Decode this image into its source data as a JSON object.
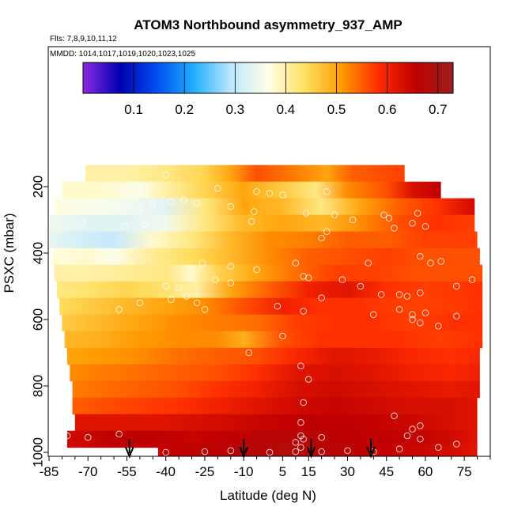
{
  "chart_data": {
    "type": "heatmap",
    "title": "ATOM3 Northbound asymmetry_937_AMP",
    "annotations": [
      "Flts: 7,8,9,10,11,12",
      "MMDD: 1014,1017,1019,1020,1023,1025"
    ],
    "xlabel": "Latitude (deg N)",
    "ylabel": "PSXC (mbar)",
    "xlim": [
      -85,
      85
    ],
    "ylim": [
      1000,
      0
    ],
    "x_ticks": [
      -85,
      -70,
      -55,
      -40,
      -25,
      -10,
      5,
      15,
      30,
      45,
      60,
      75
    ],
    "y_ticks": [
      200,
      400,
      600,
      800,
      1000
    ],
    "colorbar": {
      "ticks": [
        0.1,
        0.2,
        0.3,
        0.4,
        0.5,
        0.6,
        0.7
      ],
      "range": [
        0.0,
        0.73
      ],
      "colors": [
        "#8a2be2",
        "#0000b0",
        "#0050f0",
        "#20b0ff",
        "#bfe6ff",
        "#ffffe8",
        "#ffe060",
        "#ff9a00",
        "#ff2a00",
        "#c00000",
        "#9a2020"
      ]
    },
    "rows": [
      {
        "p": 160,
        "lat": [
          -71,
          52
        ],
        "vals": [
          [
            -71,
            0.4
          ],
          [
            -55,
            0.4
          ],
          [
            -40,
            0.42
          ],
          [
            -25,
            0.45
          ],
          [
            -15,
            0.5
          ],
          [
            -5,
            0.56
          ],
          [
            10,
            0.53
          ],
          [
            22,
            0.5
          ],
          [
            32,
            0.55
          ],
          [
            42,
            0.56
          ],
          [
            52,
            0.57
          ]
        ]
      },
      {
        "p": 210,
        "lat": [
          -80,
          66
        ],
        "vals": [
          [
            -80,
            0.38
          ],
          [
            -65,
            0.38
          ],
          [
            -50,
            0.36
          ],
          [
            -40,
            0.4
          ],
          [
            -25,
            0.45
          ],
          [
            -10,
            0.5
          ],
          [
            5,
            0.46
          ],
          [
            18,
            0.42
          ],
          [
            30,
            0.52
          ],
          [
            45,
            0.56
          ],
          [
            55,
            0.63
          ],
          [
            66,
            0.66
          ]
        ]
      },
      {
        "p": 260,
        "lat": [
          -83,
          79
        ],
        "vals": [
          [
            -83,
            0.37
          ],
          [
            -70,
            0.36
          ],
          [
            -55,
            0.35
          ],
          [
            -40,
            0.33
          ],
          [
            -25,
            0.42
          ],
          [
            -10,
            0.5
          ],
          [
            5,
            0.48
          ],
          [
            20,
            0.42
          ],
          [
            35,
            0.5
          ],
          [
            50,
            0.55
          ],
          [
            65,
            0.58
          ],
          [
            79,
            0.64
          ]
        ]
      },
      {
        "p": 310,
        "lat": [
          -85,
          79
        ],
        "vals": [
          [
            -85,
            0.35
          ],
          [
            -70,
            0.33
          ],
          [
            -55,
            0.33
          ],
          [
            -40,
            0.35
          ],
          [
            -25,
            0.42
          ],
          [
            -10,
            0.48
          ],
          [
            5,
            0.5
          ],
          [
            20,
            0.48
          ],
          [
            35,
            0.52
          ],
          [
            50,
            0.56
          ],
          [
            65,
            0.58
          ],
          [
            79,
            0.57
          ]
        ]
      },
      {
        "p": 360,
        "lat": [
          -85,
          80
        ],
        "vals": [
          [
            -85,
            0.34
          ],
          [
            -70,
            0.31
          ],
          [
            -60,
            0.3
          ],
          [
            -45,
            0.38
          ],
          [
            -30,
            0.42
          ],
          [
            -15,
            0.48
          ],
          [
            0,
            0.52
          ],
          [
            15,
            0.53
          ],
          [
            30,
            0.55
          ],
          [
            45,
            0.55
          ],
          [
            60,
            0.57
          ],
          [
            80,
            0.57
          ]
        ]
      },
      {
        "p": 410,
        "lat": [
          -84,
          81
        ],
        "vals": [
          [
            -84,
            0.37
          ],
          [
            -70,
            0.38
          ],
          [
            -60,
            0.36
          ],
          [
            -45,
            0.41
          ],
          [
            -30,
            0.44
          ],
          [
            -15,
            0.48
          ],
          [
            0,
            0.52
          ],
          [
            15,
            0.55
          ],
          [
            30,
            0.56
          ],
          [
            45,
            0.57
          ],
          [
            60,
            0.56
          ],
          [
            81,
            0.56
          ]
        ]
      },
      {
        "p": 460,
        "lat": [
          -83,
          82
        ],
        "vals": [
          [
            -83,
            0.4
          ],
          [
            -70,
            0.4
          ],
          [
            -55,
            0.41
          ],
          [
            -40,
            0.42
          ],
          [
            -30,
            0.38
          ],
          [
            -20,
            0.45
          ],
          [
            -5,
            0.5
          ],
          [
            10,
            0.54
          ],
          [
            25,
            0.57
          ],
          [
            40,
            0.57
          ],
          [
            55,
            0.56
          ],
          [
            70,
            0.56
          ],
          [
            82,
            0.56
          ]
        ]
      },
      {
        "p": 510,
        "lat": [
          -82,
          82
        ],
        "vals": [
          [
            -82,
            0.42
          ],
          [
            -70,
            0.43
          ],
          [
            -55,
            0.45
          ],
          [
            -40,
            0.43
          ],
          [
            -28,
            0.4
          ],
          [
            -15,
            0.5
          ],
          [
            0,
            0.55
          ],
          [
            15,
            0.6
          ],
          [
            30,
            0.62
          ],
          [
            45,
            0.58
          ],
          [
            60,
            0.57
          ],
          [
            82,
            0.58
          ]
        ]
      },
      {
        "p": 560,
        "lat": [
          -81,
          82
        ],
        "vals": [
          [
            -81,
            0.44
          ],
          [
            -70,
            0.46
          ],
          [
            -55,
            0.48
          ],
          [
            -40,
            0.5
          ],
          [
            -25,
            0.52
          ],
          [
            -10,
            0.56
          ],
          [
            5,
            0.6
          ],
          [
            20,
            0.58
          ],
          [
            35,
            0.58
          ],
          [
            50,
            0.57
          ],
          [
            65,
            0.57
          ],
          [
            82,
            0.58
          ]
        ]
      },
      {
        "p": 610,
        "lat": [
          -80,
          82
        ],
        "vals": [
          [
            -80,
            0.46
          ],
          [
            -65,
            0.48
          ],
          [
            -50,
            0.5
          ],
          [
            -35,
            0.52
          ],
          [
            -20,
            0.53
          ],
          [
            -5,
            0.54
          ],
          [
            10,
            0.57
          ],
          [
            25,
            0.58
          ],
          [
            40,
            0.58
          ],
          [
            55,
            0.57
          ],
          [
            70,
            0.58
          ],
          [
            82,
            0.58
          ]
        ]
      },
      {
        "p": 660,
        "lat": [
          -79,
          82
        ],
        "vals": [
          [
            -79,
            0.48
          ],
          [
            -65,
            0.49
          ],
          [
            -50,
            0.51
          ],
          [
            -35,
            0.52
          ],
          [
            -20,
            0.52
          ],
          [
            -10,
            0.49
          ],
          [
            5,
            0.56
          ],
          [
            20,
            0.58
          ],
          [
            35,
            0.58
          ],
          [
            50,
            0.58
          ],
          [
            65,
            0.57
          ],
          [
            82,
            0.58
          ]
        ]
      },
      {
        "p": 710,
        "lat": [
          -78,
          81
        ],
        "vals": [
          [
            -78,
            0.5
          ],
          [
            -65,
            0.51
          ],
          [
            -50,
            0.52
          ],
          [
            -35,
            0.54
          ],
          [
            -20,
            0.55
          ],
          [
            -5,
            0.56
          ],
          [
            10,
            0.59
          ],
          [
            25,
            0.62
          ],
          [
            40,
            0.61
          ],
          [
            55,
            0.59
          ],
          [
            70,
            0.58
          ],
          [
            81,
            0.59
          ]
        ]
      },
      {
        "p": 760,
        "lat": [
          -77,
          81
        ],
        "vals": [
          [
            -77,
            0.52
          ],
          [
            -65,
            0.53
          ],
          [
            -50,
            0.54
          ],
          [
            -35,
            0.55
          ],
          [
            -20,
            0.56
          ],
          [
            -5,
            0.58
          ],
          [
            10,
            0.62
          ],
          [
            25,
            0.63
          ],
          [
            40,
            0.62
          ],
          [
            55,
            0.6
          ],
          [
            70,
            0.59
          ],
          [
            81,
            0.6
          ]
        ]
      },
      {
        "p": 810,
        "lat": [
          -76,
          81
        ],
        "vals": [
          [
            -76,
            0.53
          ],
          [
            -65,
            0.54
          ],
          [
            -50,
            0.55
          ],
          [
            -35,
            0.56
          ],
          [
            -20,
            0.58
          ],
          [
            -5,
            0.6
          ],
          [
            10,
            0.63
          ],
          [
            25,
            0.64
          ],
          [
            40,
            0.63
          ],
          [
            55,
            0.62
          ],
          [
            70,
            0.61
          ],
          [
            81,
            0.62
          ]
        ]
      },
      {
        "p": 860,
        "lat": [
          -76,
          80
        ],
        "vals": [
          [
            -76,
            0.55
          ],
          [
            -65,
            0.56
          ],
          [
            -50,
            0.57
          ],
          [
            -35,
            0.58
          ],
          [
            -20,
            0.6
          ],
          [
            -5,
            0.62
          ],
          [
            10,
            0.64
          ],
          [
            25,
            0.65
          ],
          [
            40,
            0.64
          ],
          [
            55,
            0.63
          ],
          [
            70,
            0.63
          ],
          [
            80,
            0.62
          ]
        ]
      },
      {
        "p": 910,
        "lat": [
          -75,
          80
        ],
        "vals": [
          [
            -75,
            0.62
          ],
          [
            -60,
            0.62
          ],
          [
            -45,
            0.62
          ],
          [
            -30,
            0.63
          ],
          [
            -15,
            0.64
          ],
          [
            0,
            0.65
          ],
          [
            15,
            0.66
          ],
          [
            30,
            0.66
          ],
          [
            45,
            0.65
          ],
          [
            60,
            0.64
          ],
          [
            70,
            0.63
          ],
          [
            80,
            0.62
          ]
        ]
      },
      {
        "p": 960,
        "lat": [
          -78,
          80
        ],
        "vals": [
          [
            -78,
            0.64
          ],
          [
            -60,
            0.66
          ],
          [
            -45,
            0.66
          ],
          [
            -30,
            0.65
          ],
          [
            -15,
            0.66
          ],
          [
            0,
            0.67
          ],
          [
            15,
            0.67
          ],
          [
            30,
            0.66
          ],
          [
            45,
            0.66
          ],
          [
            60,
            0.65
          ],
          [
            70,
            0.64
          ],
          [
            80,
            0.62
          ]
        ]
      },
      {
        "p": 1000,
        "lat": [
          -43,
          80
        ],
        "vals": [
          [
            -43,
            0.65
          ],
          [
            -25,
            0.66
          ],
          [
            -10,
            0.67
          ],
          [
            5,
            0.68
          ],
          [
            20,
            0.67
          ],
          [
            35,
            0.66
          ],
          [
            50,
            0.65
          ],
          [
            65,
            0.64
          ],
          [
            80,
            0.62
          ]
        ]
      }
    ],
    "points": [
      [
        -40,
        165
      ],
      [
        -55,
        210
      ],
      [
        -20,
        205
      ],
      [
        -5,
        215
      ],
      [
        0,
        220
      ],
      [
        5,
        225
      ],
      [
        22,
        215
      ],
      [
        -33,
        240
      ],
      [
        -38,
        245
      ],
      [
        -45,
        250
      ],
      [
        -28,
        250
      ],
      [
        -60,
        260
      ],
      [
        -50,
        265
      ],
      [
        -15,
        260
      ],
      [
        -6,
        275
      ],
      [
        14,
        280
      ],
      [
        25,
        285
      ],
      [
        44,
        285
      ],
      [
        57,
        280
      ],
      [
        -72,
        310
      ],
      [
        -56,
        320
      ],
      [
        -48,
        315
      ],
      [
        -7,
        305
      ],
      [
        32,
        300
      ],
      [
        46,
        295
      ],
      [
        48,
        325
      ],
      [
        55,
        310
      ],
      [
        60,
        320
      ],
      [
        22,
        335
      ],
      [
        20,
        355
      ],
      [
        -59,
        400
      ],
      [
        -73,
        400
      ],
      [
        -65,
        400
      ],
      [
        -26,
        430
      ],
      [
        -15,
        440
      ],
      [
        -5,
        450
      ],
      [
        10,
        430
      ],
      [
        38,
        430
      ],
      [
        66,
        425
      ],
      [
        58,
        410
      ],
      [
        62,
        430
      ],
      [
        13,
        470
      ],
      [
        15,
        475
      ],
      [
        -21,
        480
      ],
      [
        -15,
        490
      ],
      [
        28,
        480
      ],
      [
        -40,
        500
      ],
      [
        -35,
        505
      ],
      [
        35,
        500
      ],
      [
        72,
        500
      ],
      [
        78,
        480
      ],
      [
        58,
        520
      ],
      [
        50,
        525
      ],
      [
        53,
        530
      ],
      [
        20,
        535
      ],
      [
        43,
        525
      ],
      [
        -32,
        530
      ],
      [
        -38,
        540
      ],
      [
        -50,
        550
      ],
      [
        -58,
        570
      ],
      [
        -25,
        570
      ],
      [
        -28,
        550
      ],
      [
        3,
        560
      ],
      [
        13,
        575
      ],
      [
        40,
        585
      ],
      [
        50,
        570
      ],
      [
        55,
        585
      ],
      [
        60,
        580
      ],
      [
        72,
        590
      ],
      [
        65,
        620
      ],
      [
        55,
        600
      ],
      [
        58,
        610
      ],
      [
        5,
        650
      ],
      [
        -8,
        700
      ],
      [
        12,
        740
      ],
      [
        15,
        780
      ],
      [
        13,
        850
      ],
      [
        48,
        890
      ],
      [
        58,
        920
      ],
      [
        55,
        930
      ],
      [
        53,
        950
      ],
      [
        58,
        960
      ],
      [
        -78,
        950
      ],
      [
        -70,
        955
      ],
      [
        -58,
        945
      ],
      [
        12,
        910
      ],
      [
        12,
        950
      ],
      [
        13,
        960
      ],
      [
        20,
        955
      ],
      [
        10,
        970
      ],
      [
        12,
        985
      ],
      [
        -40,
        1000
      ],
      [
        -25,
        998
      ],
      [
        -15,
        995
      ],
      [
        0,
        1000
      ],
      [
        10,
        998
      ],
      [
        20,
        998
      ],
      [
        30,
        995
      ],
      [
        40,
        998
      ],
      [
        50,
        990
      ],
      [
        65,
        985
      ],
      [
        72,
        975
      ]
    ],
    "arrows": [
      -54,
      -10,
      16,
      39
    ]
  }
}
